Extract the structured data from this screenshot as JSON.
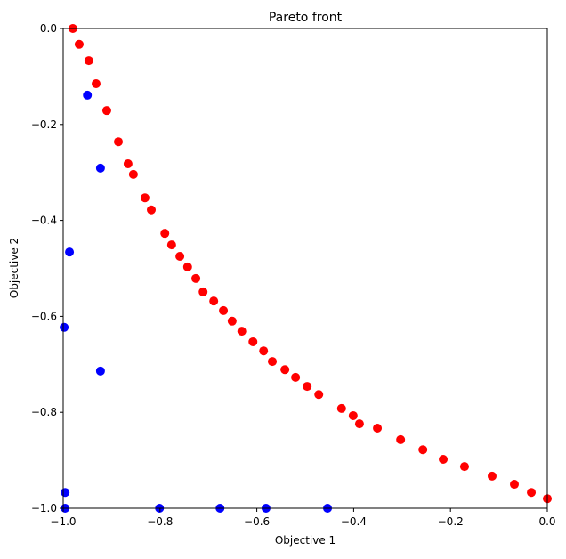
{
  "chart_data": {
    "type": "scatter",
    "title": "Pareto front",
    "xlabel": "Objective 1",
    "ylabel": "Objective 2",
    "xlim": [
      -1.0,
      0.0
    ],
    "ylim": [
      -1.0,
      0.0
    ],
    "grid": false,
    "xticks": [
      "−1.0",
      "−0.8",
      "−0.6",
      "−0.4",
      "−0.2",
      "0.0"
    ],
    "xtick_values": [
      -1.0,
      -0.8,
      -0.6,
      -0.4,
      -0.2,
      0.0
    ],
    "yticks": [
      "0.0",
      "−0.2",
      "−0.4",
      "−0.6",
      "−0.8",
      "−1.0"
    ],
    "ytick_values": [
      0.0,
      -0.2,
      -0.4,
      -0.6,
      -0.8,
      -1.0
    ],
    "series": [
      {
        "color": "#ff0000",
        "points": [
          [
            -0.98,
            0.0
          ],
          [
            -0.967,
            -0.033
          ],
          [
            -0.947,
            -0.067
          ],
          [
            -0.932,
            -0.115
          ],
          [
            -0.91,
            -0.171
          ],
          [
            -0.886,
            -0.236
          ],
          [
            -0.866,
            -0.282
          ],
          [
            -0.855,
            -0.304
          ],
          [
            -0.831,
            -0.353
          ],
          [
            -0.818,
            -0.378
          ],
          [
            -0.79,
            -0.427
          ],
          [
            -0.776,
            -0.451
          ],
          [
            -0.759,
            -0.475
          ],
          [
            -0.743,
            -0.497
          ],
          [
            -0.726,
            -0.521
          ],
          [
            -0.711,
            -0.549
          ],
          [
            -0.689,
            -0.568
          ],
          [
            -0.669,
            -0.588
          ],
          [
            -0.651,
            -0.61
          ],
          [
            -0.631,
            -0.631
          ],
          [
            -0.608,
            -0.653
          ],
          [
            -0.586,
            -0.672
          ],
          [
            -0.568,
            -0.694
          ],
          [
            -0.542,
            -0.711
          ],
          [
            -0.52,
            -0.727
          ],
          [
            -0.496,
            -0.746
          ],
          [
            -0.472,
            -0.763
          ],
          [
            -0.425,
            -0.792
          ],
          [
            -0.401,
            -0.807
          ],
          [
            -0.388,
            -0.824
          ],
          [
            -0.351,
            -0.833
          ],
          [
            -0.303,
            -0.857
          ],
          [
            -0.257,
            -0.878
          ],
          [
            -0.215,
            -0.898
          ],
          [
            -0.171,
            -0.913
          ],
          [
            -0.114,
            -0.933
          ],
          [
            -0.068,
            -0.95
          ],
          [
            -0.033,
            -0.967
          ],
          [
            0.0,
            -0.98
          ]
        ]
      },
      {
        "color": "#0000ff",
        "points": [
          [
            -0.95,
            -0.139
          ],
          [
            -0.923,
            -0.291
          ],
          [
            -0.987,
            -0.466
          ],
          [
            -0.998,
            -0.623
          ],
          [
            -0.923,
            -0.714
          ],
          [
            -0.996,
            -0.967
          ],
          [
            -0.996,
            -1.0
          ],
          [
            -0.801,
            -1.0
          ],
          [
            -0.676,
            -1.0
          ],
          [
            -0.581,
            -1.0
          ],
          [
            -0.454,
            -1.0
          ]
        ]
      }
    ]
  }
}
